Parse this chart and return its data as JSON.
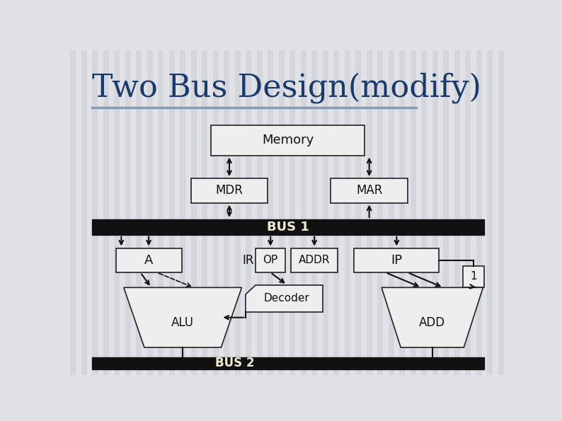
{
  "title": "Two Bus Design(modify)",
  "title_color": "#1a3a6b",
  "title_fontsize": 32,
  "bg_color": "#e0e2e8",
  "stripe_color": "#d4d6dc",
  "bus_color": "#111111",
  "bus_label_color": "#f0ead0",
  "box_facecolor": "#eeeeee",
  "box_edgecolor": "#222222",
  "text_color": "#111111",
  "arrow_color": "#111111",
  "underline_color": "#8899bb",
  "bus1_label": "BUS 1",
  "bus2_label": "BUS 2",
  "mem_label": "Memory",
  "mdr_label": "MDR",
  "mar_label": "MAR",
  "a_label": "A",
  "ir_label": "IR",
  "op_label": "OP",
  "addr_label": "ADDR",
  "ip_label": "IP",
  "alu_label": "ALU",
  "dec_label": "Decoder",
  "add_label": "ADD",
  "one_label": "1"
}
